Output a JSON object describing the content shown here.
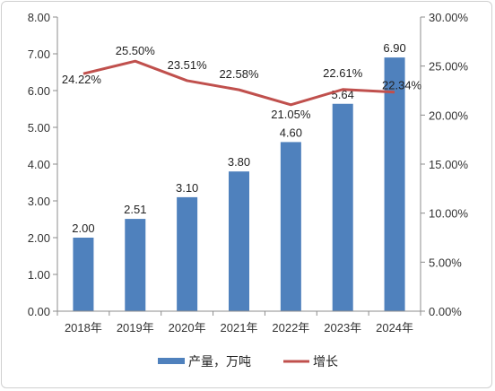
{
  "chart_data": {
    "type": "bar",
    "categories": [
      "2018年",
      "2019年",
      "2020年",
      "2021年",
      "2022年",
      "2023年",
      "2024年"
    ],
    "series": [
      {
        "name": "产量，万吨",
        "type": "bar",
        "axis": "left",
        "values": [
          2.0,
          2.51,
          3.1,
          3.8,
          4.6,
          5.64,
          6.9
        ],
        "labels": [
          "2.00",
          "2.51",
          "3.10",
          "3.80",
          "4.60",
          "5.64",
          "6.90"
        ],
        "color": "#4f81bd"
      },
      {
        "name": "增长",
        "type": "line",
        "axis": "right",
        "values": [
          24.22,
          25.5,
          23.51,
          22.58,
          21.05,
          22.61,
          22.34
        ],
        "labels": [
          "24.22%",
          "25.50%",
          "23.51%",
          "22.58%",
          "21.05%",
          "22.61%",
          "22.34%"
        ],
        "color": "#c0504d"
      }
    ],
    "y_left": {
      "ylim": [
        0,
        8
      ],
      "ticks": [
        "0.00",
        "1.00",
        "2.00",
        "3.00",
        "4.00",
        "5.00",
        "6.00",
        "7.00",
        "8.00"
      ]
    },
    "y_right": {
      "ylim": [
        0,
        30
      ],
      "ticks": [
        "0.00%",
        "5.00%",
        "10.00%",
        "15.00%",
        "20.00%",
        "25.00%",
        "30.00%"
      ]
    },
    "grid": false,
    "legend": "bottom"
  }
}
